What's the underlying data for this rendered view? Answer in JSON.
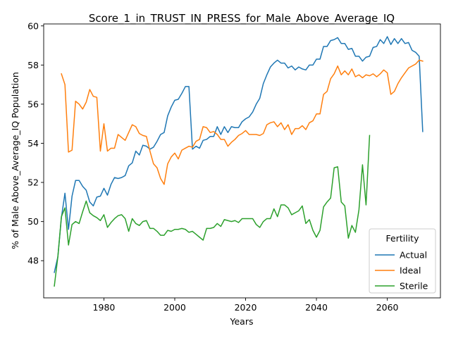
{
  "chart_data": {
    "type": "line",
    "title": "Score_1_in_TRUST_IN_PRESS_for_Male_Above_Average_IQ",
    "xlabel": "Years",
    "ylabel": "% of Male Above_Average_IQ Population",
    "xlim": [
      1963,
      2075
    ],
    "ylim": [
      46.1,
      60.1
    ],
    "xticks": [
      1980,
      2000,
      2020,
      2040,
      2060
    ],
    "yticks": [
      48,
      50,
      52,
      54,
      56,
      58,
      60
    ],
    "grid": false,
    "legend": {
      "title": "Fertility",
      "placement": "lower-right"
    },
    "series": [
      {
        "name": "Actual",
        "color": "#1f77b4",
        "x": [
          1966,
          1967,
          1968,
          1969,
          1970,
          1971,
          1972,
          1973,
          1974,
          1975,
          1976,
          1977,
          1978,
          1979,
          1980,
          1981,
          1982,
          1983,
          1984,
          1985,
          1986,
          1987,
          1988,
          1989,
          1990,
          1991,
          1992,
          1993,
          1994,
          1995,
          1996,
          1997,
          1998,
          1999,
          2000,
          2001,
          2002,
          2003,
          2004,
          2005,
          2006,
          2007,
          2008,
          2009,
          2010,
          2011,
          2012,
          2013,
          2014,
          2015,
          2016,
          2017,
          2018,
          2019,
          2020,
          2021,
          2022,
          2023,
          2024,
          2025,
          2026,
          2027,
          2028,
          2029,
          2030,
          2031,
          2032,
          2033,
          2034,
          2035,
          2036,
          2037,
          2038,
          2039,
          2040,
          2041,
          2042,
          2043,
          2044,
          2045,
          2046,
          2047,
          2048,
          2049,
          2050,
          2051,
          2052,
          2053,
          2054,
          2055,
          2056,
          2057,
          2058,
          2059,
          2060,
          2061,
          2062,
          2063,
          2064,
          2065,
          2066,
          2067,
          2068,
          2069,
          2070
        ],
        "values": [
          47.4,
          48.2,
          50.2,
          51.45,
          49.6,
          51.3,
          52.1,
          52.1,
          51.8,
          51.6,
          51.0,
          50.8,
          51.25,
          51.3,
          51.7,
          51.35,
          51.9,
          52.25,
          52.2,
          52.25,
          52.35,
          52.85,
          53.0,
          53.6,
          53.4,
          53.9,
          53.85,
          53.7,
          53.8,
          54.1,
          54.45,
          54.55,
          55.4,
          55.85,
          56.2,
          56.25,
          56.55,
          56.9,
          56.9,
          53.7,
          53.85,
          53.75,
          54.15,
          54.2,
          54.35,
          54.35,
          54.85,
          54.45,
          54.85,
          54.55,
          54.85,
          54.8,
          54.8,
          55.1,
          55.25,
          55.35,
          55.6,
          56.0,
          56.3,
          57.05,
          57.5,
          57.9,
          58.1,
          58.25,
          58.1,
          58.1,
          57.85,
          57.95,
          57.75,
          57.9,
          57.8,
          57.75,
          58.0,
          58.0,
          58.3,
          58.3,
          58.95,
          58.95,
          59.25,
          59.3,
          59.4,
          59.1,
          59.1,
          58.8,
          58.85,
          58.45,
          58.45,
          58.2,
          58.4,
          58.45,
          58.9,
          58.95,
          59.3,
          59.1,
          59.45,
          59.05,
          59.35,
          59.1,
          59.35,
          59.1,
          59.15,
          58.75,
          58.65,
          58.45,
          54.6
        ]
      },
      {
        "name": "Ideal",
        "color": "#ff7f0e",
        "x": [
          1968,
          1969,
          1970,
          1971,
          1972,
          1973,
          1974,
          1975,
          1976,
          1977,
          1978,
          1979,
          1980,
          1981,
          1982,
          1983,
          1984,
          1985,
          1986,
          1987,
          1988,
          1989,
          1990,
          1991,
          1992,
          1993,
          1994,
          1995,
          1996,
          1997,
          1998,
          1999,
          2000,
          2001,
          2002,
          2003,
          2004,
          2005,
          2006,
          2007,
          2008,
          2009,
          2010,
          2011,
          2012,
          2013,
          2014,
          2015,
          2016,
          2017,
          2018,
          2019,
          2020,
          2021,
          2022,
          2023,
          2024,
          2025,
          2026,
          2027,
          2028,
          2029,
          2030,
          2031,
          2032,
          2033,
          2034,
          2035,
          2036,
          2037,
          2038,
          2039,
          2040,
          2041,
          2042,
          2043,
          2044,
          2045,
          2046,
          2047,
          2048,
          2049,
          2050,
          2051,
          2052,
          2053,
          2054,
          2055,
          2056,
          2057,
          2058,
          2059,
          2060,
          2061,
          2062,
          2063,
          2064,
          2065,
          2066,
          2067,
          2068,
          2069,
          2070
        ],
        "values": [
          57.55,
          57.0,
          53.55,
          53.65,
          56.15,
          56.0,
          55.75,
          56.1,
          56.75,
          56.4,
          56.35,
          53.6,
          55.0,
          53.6,
          53.75,
          53.75,
          54.45,
          54.3,
          54.15,
          54.55,
          54.95,
          54.85,
          54.5,
          54.4,
          54.35,
          53.6,
          52.95,
          52.75,
          52.2,
          51.9,
          52.95,
          53.3,
          53.5,
          53.2,
          53.65,
          53.75,
          53.85,
          53.8,
          54.1,
          54.2,
          54.85,
          54.8,
          54.55,
          54.6,
          54.45,
          54.2,
          54.2,
          53.85,
          54.05,
          54.2,
          54.4,
          54.5,
          54.65,
          54.45,
          54.45,
          54.45,
          54.4,
          54.5,
          54.95,
          55.05,
          55.1,
          54.85,
          55.05,
          54.7,
          54.95,
          54.45,
          54.75,
          54.75,
          54.9,
          54.7,
          55.05,
          55.15,
          55.5,
          55.5,
          56.5,
          56.65,
          57.3,
          57.55,
          57.95,
          57.5,
          57.7,
          57.5,
          57.8,
          57.4,
          57.5,
          57.35,
          57.5,
          57.45,
          57.55,
          57.4,
          57.55,
          57.75,
          57.6,
          56.5,
          56.65,
          57.05,
          57.35,
          57.6,
          57.85,
          57.95,
          58.05,
          58.25,
          58.2
        ]
      },
      {
        "name": "Sterile",
        "color": "#2ca02c",
        "x": [
          1966,
          1967,
          1968,
          1969,
          1970,
          1971,
          1972,
          1973,
          1974,
          1975,
          1976,
          1977,
          1978,
          1979,
          1980,
          1981,
          1982,
          1983,
          1984,
          1985,
          1986,
          1987,
          1988,
          1989,
          1990,
          1991,
          1992,
          1993,
          1994,
          1995,
          1996,
          1997,
          1998,
          1999,
          2000,
          2001,
          2002,
          2003,
          2004,
          2005,
          2006,
          2007,
          2008,
          2009,
          2010,
          2011,
          2012,
          2013,
          2014,
          2015,
          2016,
          2017,
          2018,
          2019,
          2020,
          2021,
          2022,
          2023,
          2024,
          2025,
          2026,
          2027,
          2028,
          2029,
          2030,
          2031,
          2032,
          2033,
          2034,
          2035,
          2036,
          2037,
          2038,
          2039,
          2040,
          2041,
          2042,
          2043,
          2044,
          2045,
          2046,
          2047,
          2048,
          2049,
          2050,
          2051,
          2052,
          2053,
          2054,
          2055
        ],
        "values": [
          46.7,
          48.2,
          50.25,
          50.7,
          48.8,
          49.85,
          50.0,
          49.9,
          50.5,
          51.05,
          50.45,
          50.3,
          50.2,
          50.05,
          50.35,
          49.7,
          49.95,
          50.15,
          50.3,
          50.35,
          50.15,
          49.5,
          50.15,
          49.9,
          49.8,
          50.0,
          50.05,
          49.65,
          49.65,
          49.5,
          49.3,
          49.3,
          49.55,
          49.5,
          49.6,
          49.6,
          49.65,
          49.6,
          49.45,
          49.5,
          49.35,
          49.2,
          49.05,
          49.65,
          49.65,
          49.7,
          49.9,
          49.75,
          50.1,
          50.05,
          50.0,
          50.05,
          49.95,
          50.15,
          50.15,
          50.15,
          50.15,
          49.85,
          49.7,
          50.0,
          50.15,
          50.15,
          50.65,
          50.25,
          50.85,
          50.85,
          50.7,
          50.35,
          50.45,
          50.55,
          50.8,
          49.9,
          50.1,
          49.55,
          49.2,
          49.55,
          50.75,
          51.0,
          51.2,
          52.75,
          52.8,
          51.0,
          50.8,
          49.15,
          49.8,
          49.45,
          50.6,
          52.9,
          50.85,
          54.4
        ]
      }
    ]
  }
}
